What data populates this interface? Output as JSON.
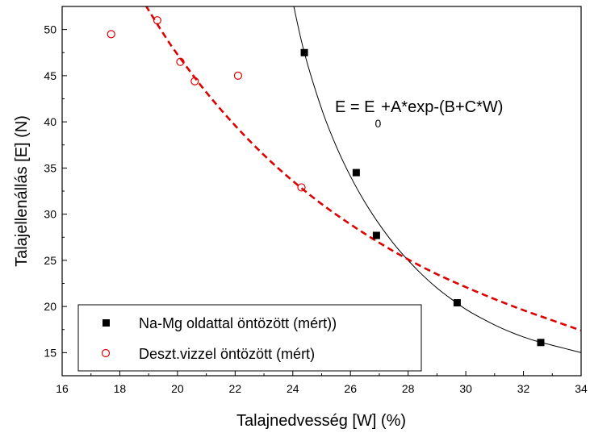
{
  "chart_data": {
    "type": "scatter",
    "title": "",
    "xlabel": "Talajnedvesség [W] (%)",
    "ylabel": "Talajellenállás [E] (N)",
    "xlim": [
      16,
      34
    ],
    "ylim": [
      12.5,
      52.5
    ],
    "x_ticks": [
      16,
      18,
      20,
      22,
      24,
      26,
      28,
      30,
      32,
      34
    ],
    "y_ticks": [
      15,
      20,
      25,
      30,
      35,
      40,
      45,
      50
    ],
    "grid": false,
    "legend_position": "bottom-left",
    "annotation": {
      "main": "E = E",
      "subscript": "0",
      "rest": "+A*exp-(B+C*W)"
    },
    "series": [
      {
        "name": "Na-Mg oldattal öntözött (mért))",
        "marker": "filled-square",
        "color": "#000000",
        "points": [
          [
            24.4,
            47.5
          ],
          [
            26.2,
            34.5
          ],
          [
            26.9,
            27.7
          ],
          [
            29.7,
            20.4
          ],
          [
            32.6,
            16.1
          ]
        ]
      },
      {
        "name": "Deszt.vizzel öntözött (mért)",
        "marker": "open-circle",
        "color": "#dd0000",
        "points": [
          [
            17.7,
            49.5
          ],
          [
            19.3,
            51.0
          ],
          [
            20.1,
            46.5
          ],
          [
            20.6,
            44.4
          ],
          [
            22.1,
            45.0
          ],
          [
            24.3,
            32.9
          ]
        ]
      }
    ],
    "fits": [
      {
        "series": "Na-Mg oldattal öntözött (mért))",
        "style": "solid",
        "color": "#000000",
        "points": [
          [
            24.0,
            53.0
          ],
          [
            24.4,
            47.5
          ],
          [
            25.0,
            41.4
          ],
          [
            25.5,
            37.4
          ],
          [
            26.0,
            34.1
          ],
          [
            26.5,
            31.3
          ],
          [
            27.0,
            28.9
          ],
          [
            27.5,
            26.8
          ],
          [
            28.0,
            25.0
          ],
          [
            28.5,
            23.4
          ],
          [
            29.0,
            22.0
          ],
          [
            29.5,
            20.8
          ],
          [
            30.0,
            19.7
          ],
          [
            30.5,
            18.8
          ],
          [
            31.0,
            18.0
          ],
          [
            31.5,
            17.3
          ],
          [
            32.0,
            16.7
          ],
          [
            32.5,
            16.2
          ],
          [
            33.0,
            15.8
          ],
          [
            33.5,
            15.4
          ],
          [
            34.0,
            15.0
          ]
        ]
      },
      {
        "series": "Deszt.vizzel öntözött (mért)",
        "style": "dashed",
        "color": "#dd0000",
        "points": [
          [
            18.9,
            52.6
          ],
          [
            19.5,
            49.6
          ],
          [
            20.0,
            47.3
          ],
          [
            21.0,
            43.2
          ],
          [
            22.0,
            39.6
          ],
          [
            23.0,
            36.4
          ],
          [
            24.0,
            33.6
          ],
          [
            25.0,
            31.1
          ],
          [
            26.0,
            28.9
          ],
          [
            27.0,
            26.9
          ],
          [
            28.0,
            25.1
          ],
          [
            29.0,
            23.5
          ],
          [
            30.0,
            22.1
          ],
          [
            31.0,
            20.8
          ],
          [
            32.0,
            19.6
          ],
          [
            33.0,
            18.5
          ],
          [
            34.0,
            17.4
          ]
        ]
      }
    ]
  }
}
